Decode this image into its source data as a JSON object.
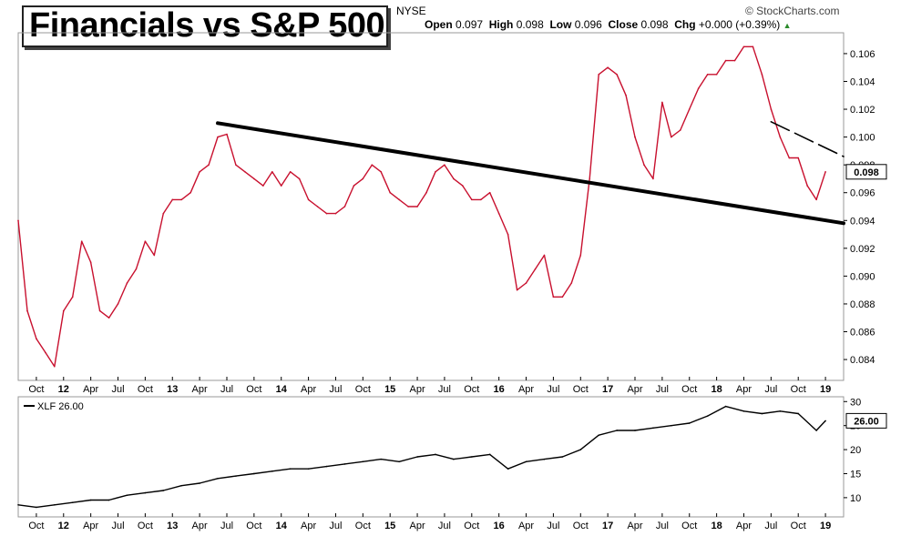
{
  "header": {
    "title": "Financials vs S&P 500",
    "exchange": "NYSE",
    "credit": "© StockCharts.com",
    "open_label": "Open",
    "open": "0.097",
    "high_label": "High",
    "high": "0.098",
    "low_label": "Low",
    "low": "0.096",
    "close_label": "Close",
    "close": "0.098",
    "chg_label": "Chg",
    "chg": "+0.000 (+0.39%)",
    "chg_arrow": "▲"
  },
  "chart_data": [
    {
      "type": "line",
      "panel": "main",
      "series": [
        {
          "color": "#c8102e",
          "x": [
            "2011-08",
            "2011-09",
            "2011-10",
            "2011-11",
            "2011-12",
            "2012-01",
            "2012-02",
            "2012-03",
            "2012-04",
            "2012-05",
            "2012-06",
            "2012-07",
            "2012-08",
            "2012-09",
            "2012-10",
            "2012-11",
            "2012-12",
            "2013-01",
            "2013-02",
            "2013-03",
            "2013-04",
            "2013-05",
            "2013-06",
            "2013-07",
            "2013-08",
            "2013-09",
            "2013-10",
            "2013-11",
            "2013-12",
            "2014-01",
            "2014-02",
            "2014-03",
            "2014-04",
            "2014-05",
            "2014-06",
            "2014-07",
            "2014-08",
            "2014-09",
            "2014-10",
            "2014-11",
            "2014-12",
            "2015-01",
            "2015-02",
            "2015-03",
            "2015-04",
            "2015-05",
            "2015-06",
            "2015-07",
            "2015-08",
            "2015-09",
            "2015-10",
            "2015-11",
            "2015-12",
            "2016-01",
            "2016-02",
            "2016-03",
            "2016-04",
            "2016-05",
            "2016-06",
            "2016-07",
            "2016-08",
            "2016-09",
            "2016-10",
            "2016-11",
            "2016-12",
            "2017-01",
            "2017-02",
            "2017-03",
            "2017-04",
            "2017-05",
            "2017-06",
            "2017-07",
            "2017-08",
            "2017-09",
            "2017-10",
            "2017-11",
            "2017-12",
            "2018-01",
            "2018-02",
            "2018-03",
            "2018-04",
            "2018-05",
            "2018-06",
            "2018-07",
            "2018-08",
            "2018-09",
            "2018-10",
            "2018-11",
            "2018-12",
            "2019-01"
          ],
          "values": [
            0.094,
            0.0875,
            0.0855,
            0.0845,
            0.0835,
            0.0875,
            0.0885,
            0.0925,
            0.091,
            0.0875,
            0.087,
            0.088,
            0.0895,
            0.0905,
            0.0925,
            0.0915,
            0.0945,
            0.0955,
            0.0955,
            0.096,
            0.0975,
            0.098,
            0.1,
            0.1002,
            0.098,
            0.0975,
            0.097,
            0.0965,
            0.0975,
            0.0965,
            0.0975,
            0.097,
            0.0955,
            0.095,
            0.0945,
            0.0945,
            0.095,
            0.0965,
            0.097,
            0.098,
            0.0975,
            0.096,
            0.0955,
            0.095,
            0.095,
            0.096,
            0.0975,
            0.098,
            0.097,
            0.0965,
            0.0955,
            0.0955,
            0.096,
            0.0945,
            0.093,
            0.089,
            0.0895,
            0.0905,
            0.0915,
            0.0885,
            0.0885,
            0.0895,
            0.0915,
            0.097,
            0.1045,
            0.105,
            0.1045,
            0.103,
            0.1,
            0.098,
            0.097,
            0.1025,
            0.1,
            0.1005,
            0.102,
            0.1035,
            0.1045,
            0.1045,
            0.1055,
            0.1055,
            0.1065,
            0.1065,
            0.1045,
            0.102,
            0.1,
            0.0985,
            0.0985,
            0.0965,
            0.0955,
            0.0975
          ],
          "close_label": "0.098"
        }
      ],
      "trendlines": [
        {
          "style": "solid",
          "from": [
            "2013-06",
            0.101
          ],
          "to": [
            "2019-03",
            0.0938
          ]
        },
        {
          "style": "dashed",
          "from": [
            "2018-07",
            0.1011
          ],
          "to": [
            "2019-03",
            0.0986
          ]
        }
      ],
      "ylim": [
        0.0825,
        0.1075
      ],
      "y_ticks": [
        0.084,
        0.086,
        0.088,
        0.09,
        0.092,
        0.094,
        0.096,
        0.098,
        0.1,
        0.102,
        0.104,
        0.106
      ],
      "y_tick_labels": [
        "0.084",
        "0.086",
        "0.088",
        "0.090",
        "0.092",
        "0.094",
        "0.096",
        "0.098",
        "0.100",
        "0.102",
        "0.104",
        "0.106"
      ],
      "grid": false
    },
    {
      "type": "line",
      "panel": "lower",
      "series": [
        {
          "name": "XLF 26.00",
          "color": "#000000",
          "x": [
            "2011-08",
            "2011-10",
            "2011-12",
            "2012-02",
            "2012-04",
            "2012-06",
            "2012-08",
            "2012-10",
            "2012-12",
            "2013-02",
            "2013-04",
            "2013-06",
            "2013-08",
            "2013-10",
            "2013-12",
            "2014-02",
            "2014-04",
            "2014-06",
            "2014-08",
            "2014-10",
            "2014-12",
            "2015-02",
            "2015-04",
            "2015-06",
            "2015-08",
            "2015-10",
            "2015-12",
            "2016-02",
            "2016-04",
            "2016-06",
            "2016-08",
            "2016-10",
            "2016-12",
            "2017-02",
            "2017-04",
            "2017-06",
            "2017-08",
            "2017-10",
            "2017-12",
            "2018-02",
            "2018-04",
            "2018-06",
            "2018-08",
            "2018-10",
            "2018-12",
            "2019-01"
          ],
          "values": [
            8.5,
            8.0,
            8.5,
            9.0,
            9.5,
            9.5,
            10.5,
            11.0,
            11.5,
            12.5,
            13.0,
            14.0,
            14.5,
            15.0,
            15.5,
            16.0,
            16.0,
            16.5,
            17.0,
            17.5,
            18.0,
            17.5,
            18.5,
            19.0,
            18.0,
            18.5,
            19.0,
            16.0,
            17.5,
            18.0,
            18.5,
            20.0,
            23.0,
            24.0,
            24.0,
            24.5,
            25.0,
            25.5,
            27.0,
            29.0,
            28.0,
            27.5,
            28.0,
            27.5,
            24.0,
            26.0
          ],
          "close_label": "26.00"
        }
      ],
      "ylim": [
        6,
        31
      ],
      "y_ticks": [
        10,
        15,
        20,
        25,
        30
      ],
      "y_tick_labels": [
        "10",
        "15",
        "20",
        "25",
        "30"
      ],
      "grid": false
    }
  ],
  "x_axis": {
    "ticks": [
      {
        "date": "2011-10",
        "label": "Oct"
      },
      {
        "date": "2012-01",
        "label": "12"
      },
      {
        "date": "2012-04",
        "label": "Apr"
      },
      {
        "date": "2012-07",
        "label": "Jul"
      },
      {
        "date": "2012-10",
        "label": "Oct"
      },
      {
        "date": "2013-01",
        "label": "13"
      },
      {
        "date": "2013-04",
        "label": "Apr"
      },
      {
        "date": "2013-07",
        "label": "Jul"
      },
      {
        "date": "2013-10",
        "label": "Oct"
      },
      {
        "date": "2014-01",
        "label": "14"
      },
      {
        "date": "2014-04",
        "label": "Apr"
      },
      {
        "date": "2014-07",
        "label": "Jul"
      },
      {
        "date": "2014-10",
        "label": "Oct"
      },
      {
        "date": "2015-01",
        "label": "15"
      },
      {
        "date": "2015-04",
        "label": "Apr"
      },
      {
        "date": "2015-07",
        "label": "Jul"
      },
      {
        "date": "2015-10",
        "label": "Oct"
      },
      {
        "date": "2016-01",
        "label": "16"
      },
      {
        "date": "2016-04",
        "label": "Apr"
      },
      {
        "date": "2016-07",
        "label": "Jul"
      },
      {
        "date": "2016-10",
        "label": "Oct"
      },
      {
        "date": "2017-01",
        "label": "17"
      },
      {
        "date": "2017-04",
        "label": "Apr"
      },
      {
        "date": "2017-07",
        "label": "Jul"
      },
      {
        "date": "2017-10",
        "label": "Oct"
      },
      {
        "date": "2018-01",
        "label": "18"
      },
      {
        "date": "2018-04",
        "label": "Apr"
      },
      {
        "date": "2018-07",
        "label": "Jul"
      },
      {
        "date": "2018-10",
        "label": "Oct"
      },
      {
        "date": "2019-01",
        "label": "19"
      }
    ],
    "xlim": [
      "2011-08",
      "2019-03"
    ]
  }
}
